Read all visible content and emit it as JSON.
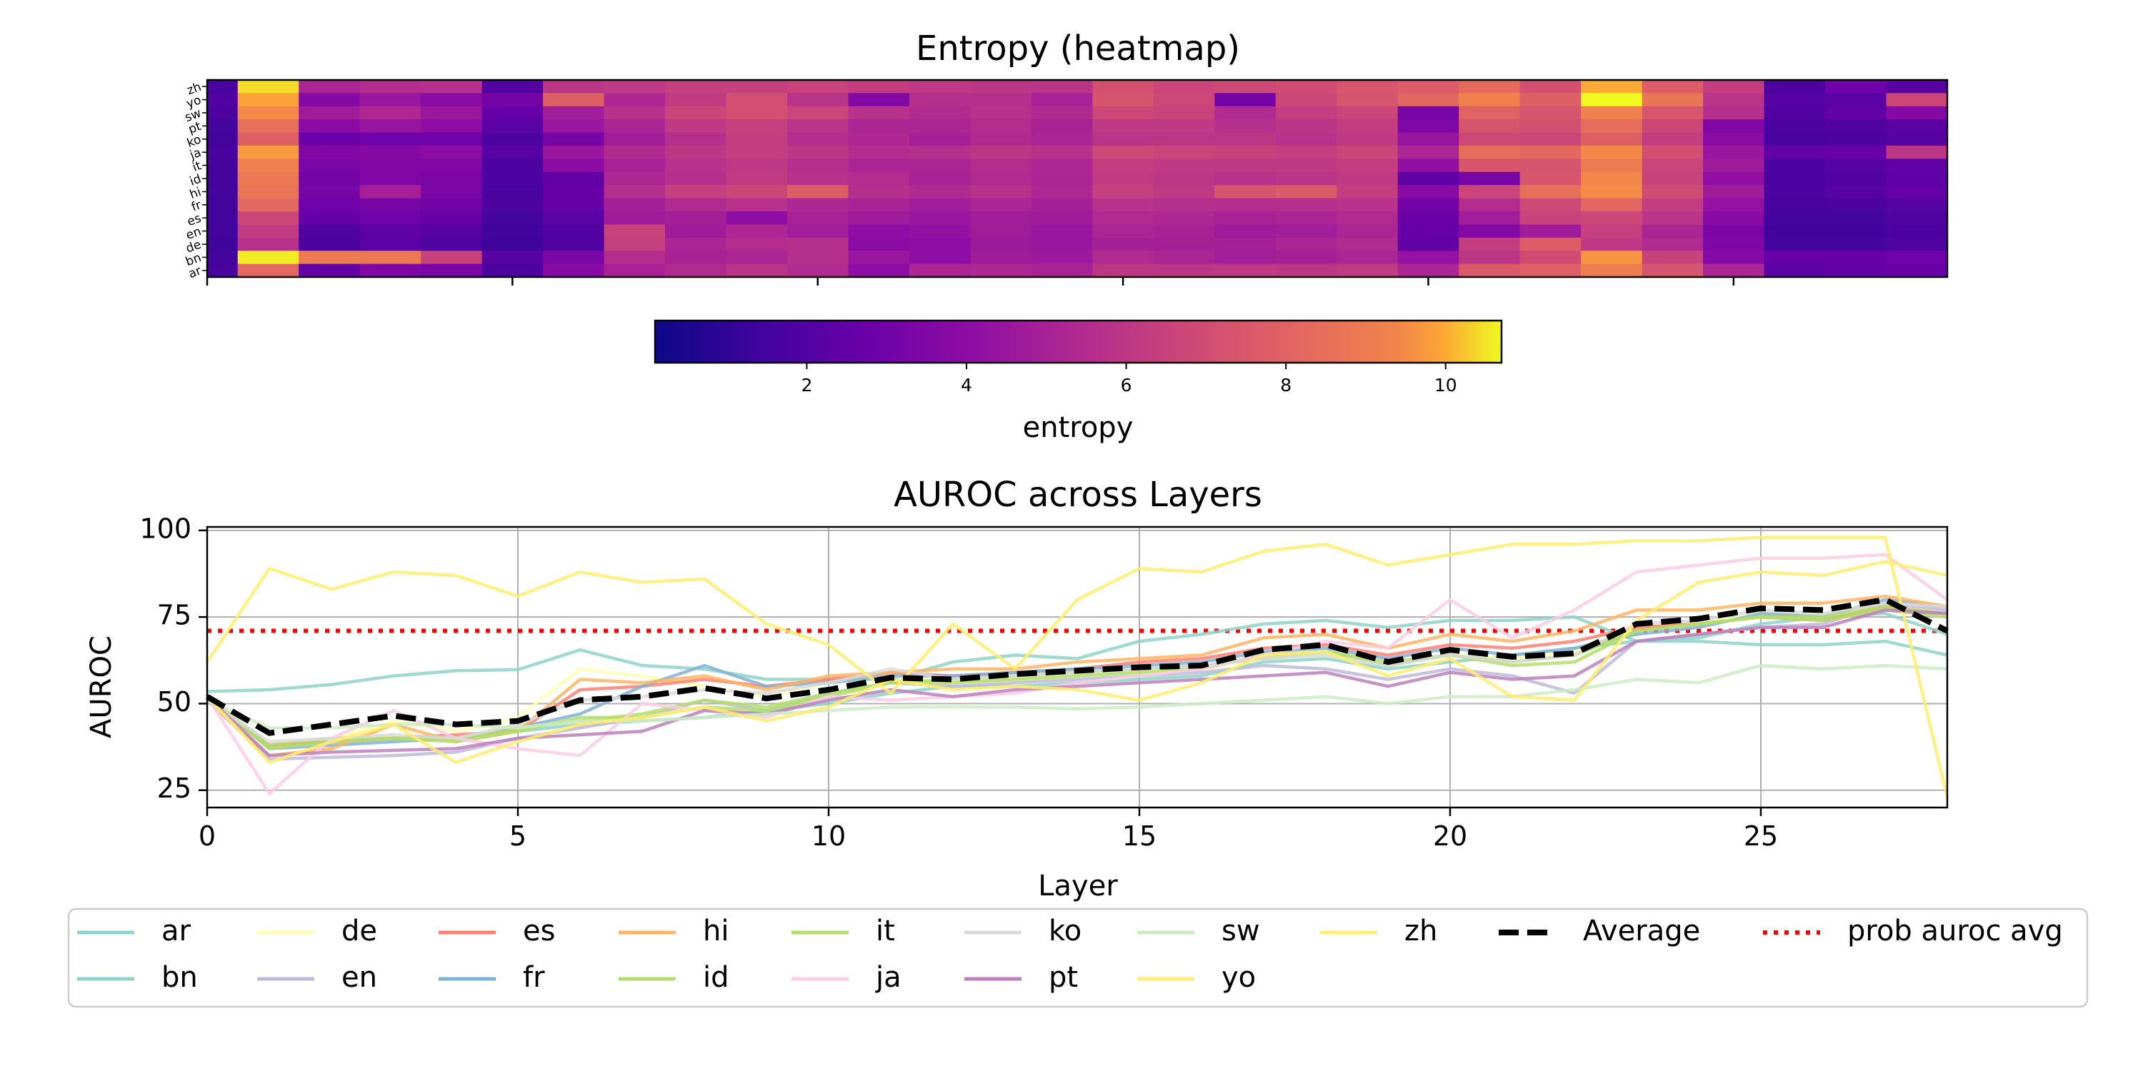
{
  "chart_data": [
    {
      "type": "heatmap",
      "title": "Entropy (heatmap)",
      "colorbar_label": "entropy",
      "colormap": "plasma",
      "vmin": 0.1,
      "vmax": 10.7,
      "colorbar_ticks": [
        "2",
        "4",
        "6",
        "8",
        "10"
      ],
      "colorbar_tick_values": [
        2,
        4,
        6,
        8,
        10
      ],
      "x_ticks": [
        0,
        5,
        10,
        15,
        20,
        25
      ],
      "n_layers": 29,
      "row_labels": [
        "zh",
        "yo",
        "sw",
        "pt",
        "ko",
        "ja",
        "it",
        "id",
        "hi",
        "fr",
        "es",
        "en",
        "de",
        "bn",
        "ar"
      ],
      "row_entropy_profile_note": "approximate per-row entropy values estimated from the color map",
      "values": [
        [
          1.5,
          10.3,
          4.6,
          4.9,
          5.0,
          1.7,
          5.3,
          5.4,
          5.7,
          5.7,
          5.8,
          5.6,
          5.4,
          5.3,
          5.2,
          6.4,
          5.9,
          6.1,
          6.2,
          6.6,
          6.9,
          7.4,
          6.4,
          9.6,
          6.9,
          5.6,
          1.6,
          2.6,
          1.9
        ],
        [
          1.8,
          9.4,
          3.3,
          4.0,
          3.5,
          2.8,
          7.0,
          4.7,
          5.5,
          6.3,
          5.2,
          3.3,
          5.0,
          5.0,
          4.5,
          6.5,
          6.0,
          2.8,
          6.0,
          6.5,
          7.2,
          8.2,
          7.0,
          10.7,
          7.8,
          5.2,
          1.9,
          2.0,
          6.0
        ],
        [
          1.6,
          8.5,
          4.2,
          4.7,
          4.0,
          2.3,
          4.3,
          5.1,
          5.9,
          6.3,
          5.9,
          5.1,
          4.8,
          5.1,
          4.8,
          6.0,
          5.8,
          4.8,
          5.6,
          5.9,
          2.9,
          7.1,
          6.5,
          8.2,
          6.6,
          5.0,
          1.8,
          2.2,
          3.3
        ],
        [
          1.4,
          7.6,
          3.5,
          3.9,
          3.6,
          2.0,
          4.0,
          4.6,
          5.4,
          5.7,
          5.2,
          4.6,
          4.6,
          4.9,
          4.5,
          5.4,
          5.4,
          5.0,
          5.2,
          5.6,
          3.1,
          6.5,
          6.4,
          7.5,
          6.0,
          3.2,
          1.6,
          1.8,
          2.0
        ],
        [
          1.3,
          7.0,
          2.5,
          2.6,
          2.6,
          1.6,
          2.9,
          4.3,
          5.0,
          5.6,
          4.9,
          4.7,
          4.4,
          4.8,
          4.6,
          5.2,
          5.3,
          5.3,
          5.1,
          5.4,
          3.9,
          6.1,
          6.0,
          7.0,
          5.6,
          3.5,
          1.5,
          1.6,
          1.9
        ],
        [
          1.5,
          9.1,
          3.2,
          3.3,
          3.5,
          1.9,
          4.0,
          4.8,
          5.3,
          5.6,
          5.3,
          4.9,
          5.0,
          5.3,
          5.1,
          6.1,
          5.9,
          5.8,
          5.6,
          5.9,
          4.6,
          7.5,
          7.3,
          8.5,
          6.3,
          4.0,
          2.2,
          2.4,
          5.3
        ],
        [
          1.4,
          8.2,
          3.0,
          3.2,
          3.2,
          1.6,
          3.5,
          4.5,
          5.1,
          5.4,
          5.0,
          4.6,
          4.6,
          4.9,
          4.7,
          5.6,
          5.4,
          5.4,
          5.4,
          5.6,
          3.7,
          6.6,
          6.5,
          8.0,
          5.9,
          4.2,
          1.6,
          1.9,
          2.2
        ],
        [
          1.4,
          7.9,
          2.8,
          3.1,
          3.0,
          1.6,
          2.2,
          4.7,
          5.0,
          5.5,
          5.1,
          4.9,
          4.5,
          4.8,
          4.6,
          5.5,
          5.3,
          5.1,
          5.2,
          5.4,
          2.1,
          2.9,
          6.6,
          8.4,
          5.8,
          3.7,
          1.6,
          1.8,
          2.1
        ],
        [
          1.4,
          7.8,
          2.9,
          4.4,
          3.0,
          1.5,
          2.4,
          5.0,
          5.7,
          6.0,
          6.9,
          5.0,
          4.8,
          5.1,
          4.7,
          5.7,
          5.4,
          6.5,
          6.8,
          5.6,
          3.4,
          5.9,
          7.6,
          8.6,
          6.2,
          4.2,
          1.6,
          1.9,
          2.3
        ],
        [
          1.3,
          7.3,
          2.6,
          2.9,
          2.7,
          1.6,
          2.3,
          4.4,
          4.8,
          5.1,
          4.7,
          4.5,
          4.3,
          4.6,
          4.4,
          5.1,
          5.0,
          4.9,
          5.0,
          5.1,
          2.7,
          4.9,
          6.1,
          7.2,
          5.6,
          3.8,
          1.5,
          1.6,
          1.9
        ],
        [
          1.3,
          6.0,
          2.3,
          2.6,
          2.4,
          1.4,
          2.0,
          4.2,
          4.4,
          3.6,
          4.5,
          4.2,
          4.0,
          4.3,
          4.2,
          4.8,
          4.7,
          4.5,
          4.6,
          4.8,
          2.5,
          4.3,
          5.8,
          6.0,
          5.2,
          3.4,
          1.4,
          1.4,
          1.7
        ],
        [
          1.3,
          5.5,
          1.7,
          2.1,
          1.9,
          1.3,
          1.8,
          5.8,
          4.2,
          4.7,
          4.3,
          3.6,
          3.8,
          4.2,
          4.0,
          4.6,
          4.5,
          4.2,
          4.3,
          4.6,
          2.3,
          3.3,
          4.2,
          5.7,
          4.6,
          3.0,
          1.3,
          1.3,
          1.6
        ],
        [
          1.2,
          5.1,
          1.6,
          2.0,
          1.7,
          1.2,
          1.7,
          5.7,
          4.6,
          4.9,
          5.0,
          3.5,
          3.6,
          4.1,
          4.0,
          4.4,
          4.4,
          4.4,
          4.6,
          4.8,
          2.2,
          5.6,
          6.9,
          5.4,
          4.8,
          3.1,
          1.4,
          1.4,
          1.7
        ],
        [
          1.4,
          10.5,
          8.0,
          7.9,
          5.8,
          1.9,
          3.0,
          4.9,
          4.5,
          4.6,
          5.0,
          4.0,
          3.6,
          4.2,
          4.1,
          4.8,
          4.6,
          4.3,
          4.4,
          4.6,
          3.8,
          5.3,
          6.2,
          8.9,
          5.8,
          3.3,
          2.4,
          2.4,
          2.6
        ],
        [
          1.5,
          7.3,
          2.2,
          3.1,
          3.0,
          1.6,
          3.4,
          4.5,
          4.8,
          5.2,
          4.8,
          3.6,
          4.6,
          4.7,
          4.5,
          5.3,
          5.3,
          5.4,
          5.3,
          5.5,
          4.6,
          6.7,
          7.0,
          8.1,
          6.5,
          4.6,
          2.0,
          2.2,
          2.4
        ]
      ]
    },
    {
      "type": "line",
      "title": "AUROC across Layers",
      "xlabel": "Layer",
      "ylabel": "AUROC",
      "xlim": [
        0,
        28
      ],
      "ylim": [
        20,
        101
      ],
      "x_ticks": [
        "0",
        "5",
        "10",
        "15",
        "20",
        "25"
      ],
      "x_tick_values": [
        0,
        5,
        10,
        15,
        20,
        25
      ],
      "y_ticks": [
        "25",
        "50",
        "75",
        "100"
      ],
      "y_tick_values": [
        25,
        50,
        75,
        100
      ],
      "grid": true,
      "legend_position": "bottom",
      "x": [
        0,
        1,
        2,
        3,
        4,
        5,
        6,
        7,
        8,
        9,
        10,
        11,
        12,
        13,
        14,
        15,
        16,
        17,
        18,
        19,
        20,
        21,
        22,
        23,
        24,
        25,
        26,
        27,
        28
      ],
      "series": [
        {
          "name": "ar",
          "color": "#8dd3c7",
          "values": [
            53.5,
            54,
            55.5,
            58,
            59.5,
            59.8,
            65.5,
            61,
            60,
            57,
            57,
            57,
            62,
            64,
            63,
            68,
            70,
            73,
            74,
            72,
            74,
            74,
            75,
            68,
            69,
            73,
            75,
            76,
            70
          ]
        },
        {
          "name": "bn",
          "color": "#8dd3c7",
          "values": [
            52,
            38,
            39,
            40,
            40,
            42,
            44,
            45,
            46,
            48,
            50,
            53,
            55,
            55,
            56,
            57,
            58,
            62,
            63,
            60,
            62,
            64,
            66,
            68,
            68,
            67,
            67,
            68,
            64
          ]
        },
        {
          "name": "de",
          "color": "#ffffb3",
          "values": [
            52,
            38,
            40,
            45,
            42,
            46,
            60,
            58,
            55,
            52,
            56,
            58,
            56,
            57,
            58,
            59,
            60,
            63,
            64,
            61,
            64,
            63,
            65,
            72,
            73,
            76,
            75,
            79,
            78
          ]
        },
        {
          "name": "en",
          "color": "#bebada",
          "values": [
            51,
            34,
            34.5,
            35,
            36,
            40,
            43,
            46,
            51,
            48,
            53,
            56,
            55,
            56,
            57,
            58,
            59,
            61,
            60,
            57,
            60,
            58,
            53,
            68,
            70,
            72,
            73,
            79,
            77
          ]
        },
        {
          "name": "es",
          "color": "#fb8072",
          "values": [
            51,
            38,
            39,
            40,
            41,
            42,
            54,
            55,
            57,
            55,
            57,
            59,
            58,
            59,
            60,
            62,
            63,
            66,
            67,
            64,
            67,
            66,
            68,
            72,
            73,
            75,
            74,
            78,
            76
          ]
        },
        {
          "name": "fr",
          "color": "#80b1d3",
          "values": [
            52,
            37,
            38,
            39,
            40,
            43,
            47,
            55,
            61,
            55,
            56,
            58,
            58,
            59,
            60,
            61,
            62,
            65,
            66,
            63,
            66,
            64,
            66,
            70,
            72,
            76,
            75,
            80,
            78
          ]
        },
        {
          "name": "hi",
          "color": "#fdb462",
          "values": [
            51,
            35,
            37,
            44,
            39,
            42,
            57,
            56,
            58,
            54,
            58,
            59,
            60,
            60,
            62,
            63,
            64,
            69,
            70,
            66,
            70,
            68,
            71,
            77,
            77,
            79,
            79,
            81,
            78
          ]
        },
        {
          "name": "id",
          "color": "#b3de69",
          "values": [
            52,
            38,
            40,
            40,
            39,
            42,
            46,
            46,
            49,
            48,
            52,
            56,
            57,
            58,
            59,
            60,
            61,
            63,
            65,
            62,
            64,
            61,
            62,
            71,
            73,
            75,
            74,
            77,
            75
          ]
        },
        {
          "name": "it",
          "color": "#b3de69",
          "values": [
            52,
            37,
            39,
            40,
            40,
            43,
            45,
            47,
            51,
            49,
            53,
            56,
            56,
            57,
            58,
            59,
            60,
            64,
            65,
            61,
            64,
            62,
            64,
            71,
            73,
            75,
            75,
            78,
            76
          ]
        },
        {
          "name": "ja",
          "color": "#fccde5",
          "values": [
            52,
            24,
            40,
            48,
            40,
            37,
            35,
            50,
            48,
            46,
            52,
            51,
            52,
            53,
            56,
            58,
            60,
            64,
            68,
            66,
            80,
            69,
            77,
            88,
            90,
            92,
            92,
            93,
            80
          ]
        },
        {
          "name": "ko",
          "color": "#d9d9d9",
          "values": [
            51,
            39,
            40,
            41,
            40,
            44,
            51,
            52,
            54,
            53,
            56,
            60,
            57,
            58,
            59,
            60,
            61,
            63,
            64,
            61,
            64,
            62,
            64,
            73,
            74,
            77,
            76,
            79,
            78
          ]
        },
        {
          "name": "pt",
          "color": "#bc80bd",
          "values": [
            52,
            35,
            36,
            36.5,
            37,
            40,
            41,
            42,
            48,
            47,
            51,
            54,
            52,
            54,
            55,
            56,
            57,
            58,
            59,
            55,
            59,
            57,
            58,
            68,
            70,
            72,
            72,
            77,
            76
          ]
        },
        {
          "name": "sw",
          "color": "#ccebc5",
          "values": [
            51,
            43,
            43,
            44,
            44,
            43,
            45,
            45,
            46,
            47,
            48,
            49,
            49,
            49,
            48.5,
            49,
            50,
            51,
            52,
            50,
            52,
            52,
            54,
            57,
            56,
            61,
            60,
            61,
            60
          ]
        },
        {
          "name": "yo",
          "color": "#ffed6f",
          "values": [
            62,
            89,
            83,
            88,
            87,
            81,
            88,
            85,
            86,
            73,
            67,
            53,
            73,
            60,
            80,
            89,
            88,
            94,
            96,
            90,
            93,
            96,
            96,
            97,
            97,
            98,
            98,
            98,
            23
          ]
        },
        {
          "name": "zh",
          "color": "#ffed6f",
          "values": [
            52,
            33,
            39,
            44,
            33,
            39,
            44,
            46,
            49,
            45,
            49,
            57,
            54,
            55,
            54,
            51,
            56,
            64,
            65,
            58,
            63,
            52,
            51,
            74,
            85,
            88,
            87,
            91,
            87
          ]
        },
        {
          "name": "Average",
          "color": "#000000",
          "values": [
            52,
            41.5,
            44,
            46.5,
            44,
            45,
            51,
            52,
            54.5,
            51.5,
            54,
            57.5,
            57,
            58.5,
            59.5,
            60.5,
            61,
            65.5,
            67,
            62,
            65.5,
            63.5,
            64.5,
            73,
            74.5,
            77.5,
            77,
            80,
            71
          ]
        }
      ],
      "reference_lines": [
        {
          "name": "prob auroc avg",
          "color": "#ff0000",
          "value": 71
        }
      ],
      "legend": [
        "ar",
        "de",
        "es",
        "hi",
        "it",
        "ko",
        "sw",
        "zh",
        "Average",
        "prob auroc avg",
        "bn",
        "en",
        "fr",
        "id",
        "ja",
        "pt",
        "yo"
      ]
    }
  ]
}
